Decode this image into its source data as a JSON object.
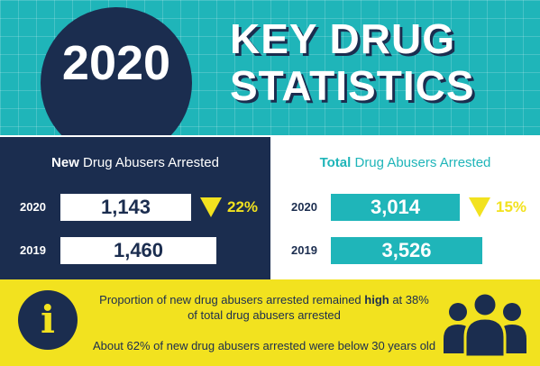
{
  "header": {
    "year": "2020",
    "title_line1": "KEY DRUG",
    "title_line2": "STATISTICS"
  },
  "chart_data": [
    {
      "type": "table",
      "title_bold": "New",
      "title_rest": " Drug Abusers Arrested",
      "rows": [
        {
          "year": "2020",
          "value": 1143,
          "display": "1,143",
          "change": "22%",
          "direction": "down"
        },
        {
          "year": "2019",
          "value": 1460,
          "display": "1,460"
        }
      ]
    },
    {
      "type": "table",
      "title_bold": "Total",
      "title_rest": " Drug Abusers Arrested",
      "rows": [
        {
          "year": "2020",
          "value": 3014,
          "display": "3,014",
          "change": "15%",
          "direction": "down"
        },
        {
          "year": "2019",
          "value": 3526,
          "display": "3,526"
        }
      ]
    }
  ],
  "footer": {
    "line1_a": "Proportion of new drug abusers arrested remained ",
    "line1_bold": "high",
    "line1_b": " at 38%",
    "line1_c": "of total drug abusers arrested",
    "line2": "About 62% of new drug abusers arrested were below 30 years old",
    "info_icon": "info-icon",
    "people_icon": "people-group-icon"
  },
  "colors": {
    "teal": "#1fb5b9",
    "navy": "#1b2d4f",
    "yellow": "#f2e21f",
    "white": "#ffffff"
  }
}
